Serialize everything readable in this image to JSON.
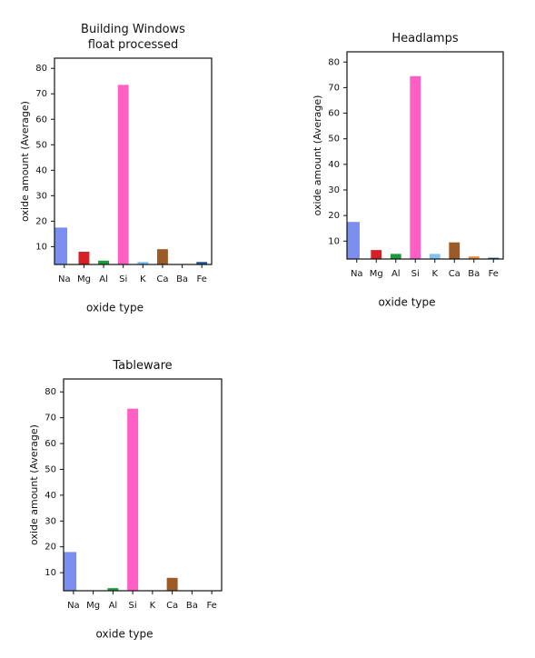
{
  "chart_data": [
    {
      "type": "bar",
      "title": "Building Windows float processed",
      "x_label": "oxide type",
      "y_label": "oxide amount (Average)",
      "categories": [
        "Na",
        "Mg",
        "Al",
        "Si",
        "K",
        "Ca",
        "Ba",
        "Fe"
      ],
      "values": [
        17.5,
        8,
        4.5,
        73.5,
        4,
        9,
        3,
        4
      ],
      "colors": [
        "#7b8ff0",
        "#d61f26",
        "#1a9a3a",
        "#ff5ec4",
        "#7fc4f0",
        "#9c5a26",
        "#f08a30",
        "#2a5a9a"
      ],
      "ylim": [
        3,
        84
      ],
      "yticks": [
        10,
        20,
        30,
        40,
        50,
        60,
        70,
        80
      ],
      "grid": false
    },
    {
      "type": "bar",
      "title": "Headlamps",
      "x_label": "oxide type",
      "y_label": "oxide amount (Average)",
      "categories": [
        "Na",
        "Mg",
        "Al",
        "Si",
        "K",
        "Ca",
        "Ba",
        "Fe"
      ],
      "values": [
        17.5,
        6.5,
        5,
        74.5,
        5,
        9.5,
        4,
        3.5
      ],
      "colors": [
        "#7b8ff0",
        "#d61f26",
        "#1a9a3a",
        "#ff5ec4",
        "#7fc4f0",
        "#9c5a26",
        "#f08a30",
        "#2a5a9a"
      ],
      "ylim": [
        3,
        84
      ],
      "yticks": [
        10,
        20,
        30,
        40,
        50,
        60,
        70,
        80
      ],
      "grid": false
    },
    {
      "type": "bar",
      "title": "Tableware",
      "x_label": "oxide type",
      "y_label": "oxide amount (Average)",
      "categories": [
        "Na",
        "Mg",
        "Al",
        "Si",
        "K",
        "Ca",
        "Ba",
        "Fe"
      ],
      "values": [
        18,
        3,
        4,
        73.5,
        3,
        8,
        3,
        3
      ],
      "colors": [
        "#7b8ff0",
        "#d61f26",
        "#1a9a3a",
        "#ff5ec4",
        "#7fc4f0",
        "#9c5a26",
        "#f08a30",
        "#2a5a9a"
      ],
      "ylim": [
        3,
        85
      ],
      "yticks": [
        10,
        20,
        30,
        40,
        50,
        60,
        70,
        80
      ],
      "grid": false
    }
  ]
}
